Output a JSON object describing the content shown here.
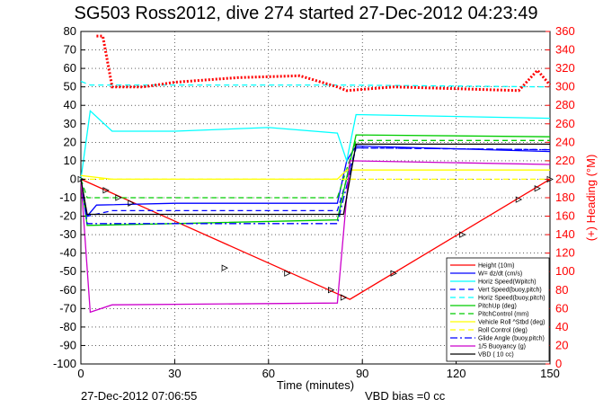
{
  "title": "SG503 Ross2012, dive 274 started 27-Dec-2012 04:23:49",
  "footer_left": "27-Dec-2012 07:06:55",
  "footer_right": "VBD bias =0 cc",
  "chart_data": {
    "type": "line",
    "xlabel": "Time (minutes)",
    "ylabel_right": "(+) Heading (°M)",
    "xlim": [
      0,
      150
    ],
    "ylim": [
      -100,
      80
    ],
    "ylim_right": [
      0,
      360
    ],
    "xticks": [
      0,
      30,
      60,
      90,
      120,
      150
    ],
    "yticks": [
      80,
      70,
      60,
      50,
      40,
      30,
      20,
      10,
      0,
      -10,
      -20,
      -30,
      -40,
      -50,
      -60,
      -70,
      -80,
      -90,
      -100
    ],
    "yticks_right": [
      360,
      340,
      320,
      300,
      280,
      260,
      240,
      220,
      200,
      180,
      160,
      140,
      120,
      100,
      80,
      60,
      40,
      20,
      0
    ],
    "grid": true,
    "legend_position": "bottom-right",
    "colors": {
      "red": "#ff0000",
      "blue": "#0000ff",
      "cyan": "#00ffff",
      "green": "#00cc00",
      "yellow": "#ffff00",
      "magenta": "#cc00cc",
      "black": "#000000",
      "heading": "#ff0000"
    },
    "series": [
      {
        "name": "Height (10m)",
        "color": "#ff0000",
        "style": "solid",
        "x": [
          0,
          86,
          150
        ],
        "y": [
          0,
          -65,
          0
        ]
      },
      {
        "name": "W= dz/dt (cm/s)",
        "color": "#0000ff",
        "style": "solid",
        "x": [
          0,
          2,
          5,
          30,
          60,
          82,
          85,
          88,
          150
        ],
        "y": [
          0,
          -20,
          -14,
          -13,
          -13,
          -13,
          10,
          18,
          15
        ]
      },
      {
        "name": "Horiz Speed(Wpitch)",
        "color": "#00ffff",
        "style": "solid",
        "x": [
          0,
          3,
          10,
          30,
          60,
          82,
          85,
          88,
          150
        ],
        "y": [
          0,
          37,
          26,
          26,
          28,
          25,
          10,
          35,
          33
        ]
      },
      {
        "name": "Vert Speed(buoy,pitch)",
        "color": "#0000ff",
        "style": "dashed",
        "x": [
          0,
          2,
          10,
          82,
          88,
          150
        ],
        "y": [
          0,
          -20,
          -17,
          -17,
          17,
          16
        ]
      },
      {
        "name": "Horiz Speed(buoy,pitch)",
        "color": "#00ffff",
        "style": "dashed",
        "x": [
          0,
          3,
          10,
          82,
          83,
          150
        ],
        "y": [
          53,
          51,
          51,
          51,
          51,
          50
        ]
      },
      {
        "name": "PitchUp (deg)",
        "color": "#00cc00",
        "style": "solid",
        "x": [
          0,
          2,
          30,
          82,
          88,
          150
        ],
        "y": [
          0,
          -25,
          -24,
          -22,
          24,
          23
        ]
      },
      {
        "name": "PitchControl (mm)",
        "color": "#00cc00",
        "style": "dashed",
        "x": [
          0,
          2,
          82,
          88,
          150
        ],
        "y": [
          0,
          -10,
          -10,
          21,
          21
        ]
      },
      {
        "name": "Vehicle Roll ^Stbd (deg)",
        "color": "#ffff00",
        "style": "solid",
        "x": [
          0,
          10,
          50,
          82,
          85,
          150
        ],
        "y": [
          2,
          0,
          0,
          0,
          5,
          5
        ]
      },
      {
        "name": "Roll Control (deg)",
        "color": "#ffff00",
        "style": "dashed",
        "x": [
          0,
          150
        ],
        "y": [
          0,
          0
        ]
      },
      {
        "name": "Glide Angle (buoy,pitch)",
        "color": "#0000ff",
        "style": "dashdot",
        "x": [
          0,
          2,
          82,
          88,
          150
        ],
        "y": [
          0,
          -24,
          -24,
          17,
          16
        ]
      },
      {
        "name": "1/5 Buoyancy (g)",
        "color": "#cc00cc",
        "style": "solid",
        "x": [
          0,
          3,
          10,
          82,
          86,
          150
        ],
        "y": [
          0,
          -72,
          -68,
          -67,
          10,
          8
        ]
      },
      {
        "name": "VBD ( 10 cc)",
        "color": "#000000",
        "style": "solid",
        "x": [
          0,
          2,
          84,
          88,
          150
        ],
        "y": [
          0,
          -19,
          -19,
          19,
          19
        ]
      },
      {
        "name": "Heading",
        "axis": "right",
        "color": "#ff0000",
        "style": "dotted",
        "x": [
          5,
          7,
          10,
          20,
          30,
          50,
          70,
          82,
          85,
          100,
          120,
          140,
          146,
          150
        ],
        "y": [
          355,
          355,
          300,
          300,
          305,
          310,
          312,
          300,
          296,
          300,
          298,
          296,
          318,
          302
        ]
      }
    ],
    "legend": [
      "Height (10m)",
      "W= dz/dt (cm/s)",
      "Horiz Speed(Wpitch)",
      "Vert Speed(buoy,pitch)",
      "Horiz Speed(buoy,pitch)",
      "PitchUp (deg)",
      "PitchControl (mm)",
      "Vehicle Roll ^Stbd (deg)",
      "Roll Control (deg)",
      "Glide Angle (buoy,pitch)",
      "1/5 Buoyancy (g)",
      "VBD ( 10 cc)"
    ]
  }
}
